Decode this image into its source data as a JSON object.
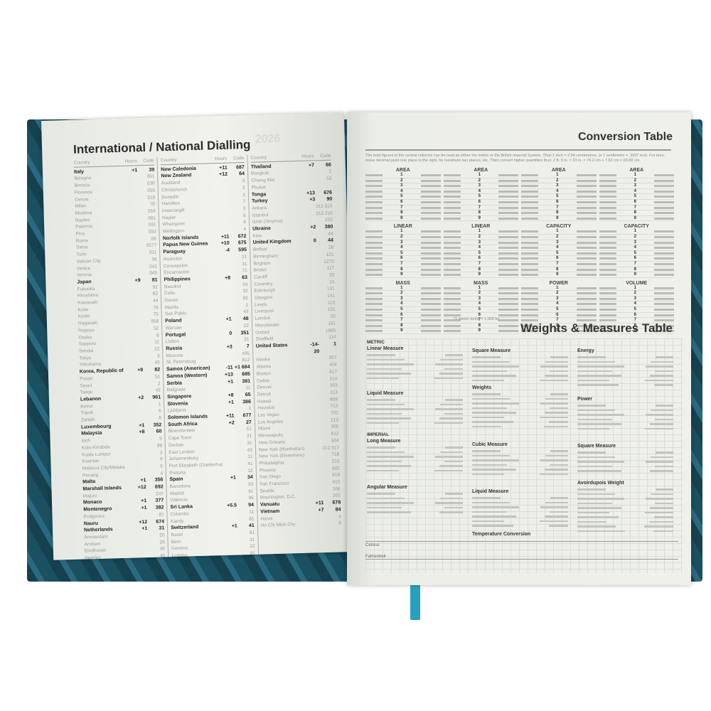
{
  "left_page": {
    "title": "International / National Dialling",
    "header": {
      "country": "Country",
      "hours": "Hours",
      "code": "Code"
    },
    "columns": [
      [
        {
          "n": "Italy",
          "h": "+1",
          "c": "39",
          "b": true
        },
        {
          "n": "Bologna",
          "c": "051"
        },
        {
          "n": "Brescia",
          "c": "030"
        },
        {
          "n": "Florence",
          "c": "055"
        },
        {
          "n": "Genoa",
          "c": "010"
        },
        {
          "n": "Milan",
          "c": "02"
        },
        {
          "n": "Modena",
          "c": "059"
        },
        {
          "n": "Naples",
          "c": "081"
        },
        {
          "n": "Palermo",
          "c": "091"
        },
        {
          "n": "Pisa",
          "c": "050"
        },
        {
          "n": "Rome",
          "c": "06"
        },
        {
          "n": "Siena",
          "c": "0577"
        },
        {
          "n": "Turin",
          "c": "011"
        },
        {
          "n": "Vatican City",
          "c": "06"
        },
        {
          "n": "Venice",
          "c": "041"
        },
        {
          "n": "Verona",
          "c": "045"
        },
        {
          "n": "Japan",
          "h": "+9",
          "c": "81",
          "b": true
        },
        {
          "n": "Fukuoka",
          "c": "92"
        },
        {
          "n": "Hiroshima",
          "c": "82"
        },
        {
          "n": "Kawasaki",
          "c": "44"
        },
        {
          "n": "Kobe",
          "c": "78"
        },
        {
          "n": "Kyoto",
          "c": "75"
        },
        {
          "n": "Nagasaki",
          "c": "958"
        },
        {
          "n": "Nagoya",
          "c": "52"
        },
        {
          "n": "Osaka",
          "c": "6"
        },
        {
          "n": "Sapporo",
          "c": "11"
        },
        {
          "n": "Sendai",
          "c": "22"
        },
        {
          "n": "Tokyo",
          "c": "3"
        },
        {
          "n": "Yokohama",
          "c": "45"
        },
        {
          "n": "Korea, Republic of",
          "h": "+9",
          "c": "82",
          "b": true
        },
        {
          "n": "Pusan",
          "c": "51"
        },
        {
          "n": "Seoul",
          "c": "2"
        },
        {
          "n": "Taegu",
          "c": "42"
        },
        {
          "n": "Lebanon",
          "h": "+2",
          "c": "961",
          "b": true
        },
        {
          "n": "Beirut",
          "c": "1"
        },
        {
          "n": "Tripoli",
          "c": "6"
        },
        {
          "n": "Zahleh",
          "c": "8"
        },
        {
          "n": "Luxembourg",
          "h": "+1",
          "c": "352",
          "b": true
        },
        {
          "n": "Malaysia",
          "h": "+8",
          "c": "60",
          "b": true
        },
        {
          "n": "Ipoh",
          "c": "5"
        },
        {
          "n": "Kota Kinabalu",
          "c": "88"
        },
        {
          "n": "Kuala Lumpur",
          "c": "3"
        },
        {
          "n": "Kuantan",
          "c": "9"
        },
        {
          "n": "Malacca City/Melaka",
          "c": "6"
        },
        {
          "n": "Penang",
          "c": "4"
        },
        {
          "n": "Malta",
          "h": "+1",
          "c": "356",
          "b": true
        },
        {
          "n": "Marshall Islands",
          "h": "+12",
          "c": "692",
          "b": true
        },
        {
          "n": "Majuro",
          "c": "247"
        },
        {
          "n": "Monaco",
          "h": "+1",
          "c": "377",
          "b": true
        },
        {
          "n": "Montenegro",
          "h": "+1",
          "c": "382",
          "b": true
        },
        {
          "n": "Podgorica",
          "c": "81"
        },
        {
          "n": "Nauru",
          "h": "+12",
          "c": "674",
          "b": true
        },
        {
          "n": "Netherlands",
          "h": "+1",
          "c": "31",
          "b": true
        },
        {
          "n": "Amsterdam",
          "c": "20"
        },
        {
          "n": "Arnhem",
          "c": "26"
        },
        {
          "n": "Eindhoven",
          "c": "40"
        },
        {
          "n": "Heerlen",
          "c": "45"
        },
        {
          "n": "Rotterdam",
          "c": "10"
        },
        {
          "n": "The Hague",
          "c": "70"
        },
        {
          "n": "Utrecht",
          "c": "30"
        }
      ],
      [
        {
          "n": "New Caledonia",
          "h": "+11",
          "c": "687",
          "b": true
        },
        {
          "n": "New Zealand",
          "h": "+12",
          "c": "64",
          "b": true
        },
        {
          "n": "Auckland",
          "c": "9"
        },
        {
          "n": "Christchurch",
          "c": "3"
        },
        {
          "n": "Dunedin",
          "c": "3"
        },
        {
          "n": "Hamilton",
          "c": "7"
        },
        {
          "n": "Invercargill",
          "c": "3"
        },
        {
          "n": "Napier",
          "c": "6"
        },
        {
          "n": "Whangarei",
          "c": "9"
        },
        {
          "n": "Wellington",
          "c": "4"
        },
        {
          "n": "Norfolk Islands",
          "h": "+11",
          "c": "672",
          "b": true
        },
        {
          "n": "Papua New Guinea",
          "h": "+10",
          "c": "675",
          "b": true
        },
        {
          "n": "Paraguay",
          "h": "-4",
          "c": "595",
          "b": true
        },
        {
          "n": "Asuncion",
          "c": "21"
        },
        {
          "n": "Concepción",
          "c": "31"
        },
        {
          "n": "Encarnación",
          "c": "71"
        },
        {
          "n": "Philippines",
          "h": "+8",
          "c": "63",
          "b": true
        },
        {
          "n": "Bacolod",
          "c": "34"
        },
        {
          "n": "Cebu",
          "c": "32"
        },
        {
          "n": "Davao",
          "c": "82"
        },
        {
          "n": "Manila",
          "c": "2"
        },
        {
          "n": "San Pablo",
          "c": "49"
        },
        {
          "n": "Poland",
          "h": "+1",
          "c": "48",
          "b": true
        },
        {
          "n": "Warsaw",
          "c": "22"
        },
        {
          "n": "Portugal",
          "h": "0",
          "c": "351",
          "b": true
        },
        {
          "n": "Lisbon",
          "c": "21"
        },
        {
          "n": "Russia",
          "h": "+3",
          "c": "7",
          "b": true
        },
        {
          "n": "Moscow",
          "c": "495"
        },
        {
          "n": "St. Petersburg",
          "c": "812"
        },
        {
          "n": "Samoa (American)",
          "h": "-11",
          "c": "+1 684",
          "b": true
        },
        {
          "n": "Samoa (Western)",
          "h": "+13",
          "c": "685",
          "b": true
        },
        {
          "n": "Serbia",
          "h": "+1",
          "c": "381",
          "b": true
        },
        {
          "n": "Belgrade",
          "c": "11"
        },
        {
          "n": "Singapore",
          "h": "+8",
          "c": "65",
          "b": true
        },
        {
          "n": "Slovenia",
          "h": "+1",
          "c": "386",
          "b": true
        },
        {
          "n": "Ljubljana",
          "c": "1"
        },
        {
          "n": "Solomon Islands",
          "h": "+11",
          "c": "677",
          "b": true
        },
        {
          "n": "South Africa",
          "h": "+2",
          "c": "27",
          "b": true
        },
        {
          "n": "Bloemfontein",
          "c": "51"
        },
        {
          "n": "Cape Town",
          "c": "21"
        },
        {
          "n": "Durban",
          "c": "31"
        },
        {
          "n": "East London",
          "c": "43"
        },
        {
          "n": "Johannesburg",
          "c": "11"
        },
        {
          "n": "Port Elizabeth (Gqeberha)",
          "c": "41"
        },
        {
          "n": "Pretoria",
          "c": "12"
        },
        {
          "n": "Spain",
          "h": "+1",
          "c": "34",
          "b": true
        },
        {
          "n": "Barcelona",
          "c": "93"
        },
        {
          "n": "Madrid",
          "c": "91"
        },
        {
          "n": "Valencia",
          "c": "96"
        },
        {
          "n": "Sri Lanka",
          "h": "+5.5",
          "c": "94",
          "b": true
        },
        {
          "n": "Colombo",
          "c": "11"
        },
        {
          "n": "Kandy",
          "c": "81"
        },
        {
          "n": "Switzerland",
          "h": "+1",
          "c": "41",
          "b": true
        },
        {
          "n": "Basel",
          "c": "61"
        },
        {
          "n": "Bern",
          "c": "31"
        },
        {
          "n": "Geneva",
          "c": "22"
        },
        {
          "n": "Lugano",
          "c": "91"
        },
        {
          "n": "St. Moritz",
          "c": "81"
        },
        {
          "n": "Zurich",
          "c": "43"
        }
      ],
      [
        {
          "n": "Thailand",
          "h": "+7",
          "c": "66",
          "b": true
        },
        {
          "n": "Bangkok",
          "c": "2"
        },
        {
          "n": "Chiang Mai",
          "c": "53"
        },
        {
          "n": "Phuket",
          "c": ""
        },
        {
          "n": "Tonga",
          "h": "+13",
          "c": "676",
          "b": true
        },
        {
          "n": "Turkey",
          "h": "+3",
          "c": "90",
          "b": true
        },
        {
          "n": "Ankara",
          "c": "312 313"
        },
        {
          "n": "Istanbul",
          "c": "212 216"
        },
        {
          "n": "Izmir (Smyrna)",
          "c": "232"
        },
        {
          "n": "Ukraine",
          "h": "+2",
          "c": "380",
          "b": true
        },
        {
          "n": "Kiev",
          "c": "44"
        },
        {
          "n": "United Kingdom",
          "h": "0",
          "c": "44",
          "b": true
        },
        {
          "n": "Belfast",
          "c": "28"
        },
        {
          "n": "Birmingham",
          "c": "121"
        },
        {
          "n": "Brighton",
          "c": "1273"
        },
        {
          "n": "Bristol",
          "c": "117"
        },
        {
          "n": "Cardiff",
          "c": "29"
        },
        {
          "n": "Coventry",
          "c": "24"
        },
        {
          "n": "Edinburgh",
          "c": "131"
        },
        {
          "n": "Glasgow",
          "c": "141"
        },
        {
          "n": "Leeds",
          "c": "113"
        },
        {
          "n": "Liverpool",
          "c": "151"
        },
        {
          "n": "London",
          "c": "20"
        },
        {
          "n": "Manchester",
          "c": "161"
        },
        {
          "n": "Oxford",
          "c": "1865"
        },
        {
          "n": "Sheffield",
          "c": "114"
        },
        {
          "n": "United States",
          "h": "-14-20",
          "c": "1",
          "b": true
        },
        {
          "n": "Alaska",
          "c": "907"
        },
        {
          "n": "Atlanta",
          "c": "404"
        },
        {
          "n": "Boston",
          "c": "617"
        },
        {
          "n": "Dallas",
          "c": "214"
        },
        {
          "n": "Denver",
          "c": "303"
        },
        {
          "n": "Detroit",
          "c": "313"
        },
        {
          "n": "Hawaii",
          "c": "808"
        },
        {
          "n": "Houston",
          "c": "713"
        },
        {
          "n": "Las Vegas",
          "c": "702"
        },
        {
          "n": "Los Angeles",
          "c": "213"
        },
        {
          "n": "Miami",
          "c": "305"
        },
        {
          "n": "Minneapolis",
          "c": "612"
        },
        {
          "n": "New Orleans",
          "c": "504"
        },
        {
          "n": "New York (Manhattan)",
          "c": "212 917"
        },
        {
          "n": "New York (Elsewhere)",
          "c": "718"
        },
        {
          "n": "Philadelphia",
          "c": "215"
        },
        {
          "n": "Phoenix",
          "c": "602"
        },
        {
          "n": "San Diego",
          "c": "619"
        },
        {
          "n": "San Francisco",
          "c": "415"
        },
        {
          "n": "Seattle",
          "c": "206"
        },
        {
          "n": "Washington, D.C.",
          "c": "202"
        },
        {
          "n": "Vanuatu",
          "h": "+11",
          "c": "678",
          "b": true
        },
        {
          "n": "Vietnam",
          "h": "+7",
          "c": "84",
          "b": true
        },
        {
          "n": "Hanoi",
          "c": "4"
        },
        {
          "n": "Ho Chi Minh City",
          "c": "8"
        }
      ]
    ]
  },
  "right_page": {
    "title": "Conversion Table",
    "intro": "The bold figures in the central columns can be read as either the metric or the British imperial System. Thus 1 inch = 2.54 centimetres, or 1 centimetre = .3937 inch. For tens, move decimal point one place to the right, for hundreds two places, etc. Then convert higher quantities thus: 2 ft. 9 in. = 33 in. = 76.2 cm + 7.62 cm = 83.82 cm.",
    "tables": [
      "AREA",
      "AREA",
      "AREA",
      "AREA",
      "LINEAR",
      "LINEAR",
      "CAPACITY",
      "CAPACITY",
      "MASS",
      "MASS",
      "POWER",
      "VOLUME"
    ],
    "index": [
      "1",
      "2",
      "3",
      "4",
      "5",
      "6",
      "7",
      "8",
      "9"
    ],
    "note": "*1 metric tonne = 1,000 kg",
    "wm_title": "Weights & Measures Table",
    "metric": "METRIC",
    "imperial": "IMPERIAL",
    "sections": {
      "linear": "Linear Measure",
      "square": "Square Measure",
      "energy": "Energy",
      "liquid": "Liquid Measure",
      "weights": "Weights",
      "power": "Power",
      "long": "Long Measure",
      "cubic": "Cubic Measure",
      "square_imp": "Square Measure",
      "angular": "Angular Measure",
      "liquid_imp": "Liquid Measure",
      "avoirdupois": "Avoirdupois Weight"
    },
    "temperature": {
      "title": "Temperature Conversion",
      "celsius": "Celsius",
      "fahrenheit": "Fahrenheit"
    }
  },
  "colors": {
    "cover": "#1d4b5a",
    "ribbon": "#2aa0c0",
    "paper": "#eef0ea"
  }
}
